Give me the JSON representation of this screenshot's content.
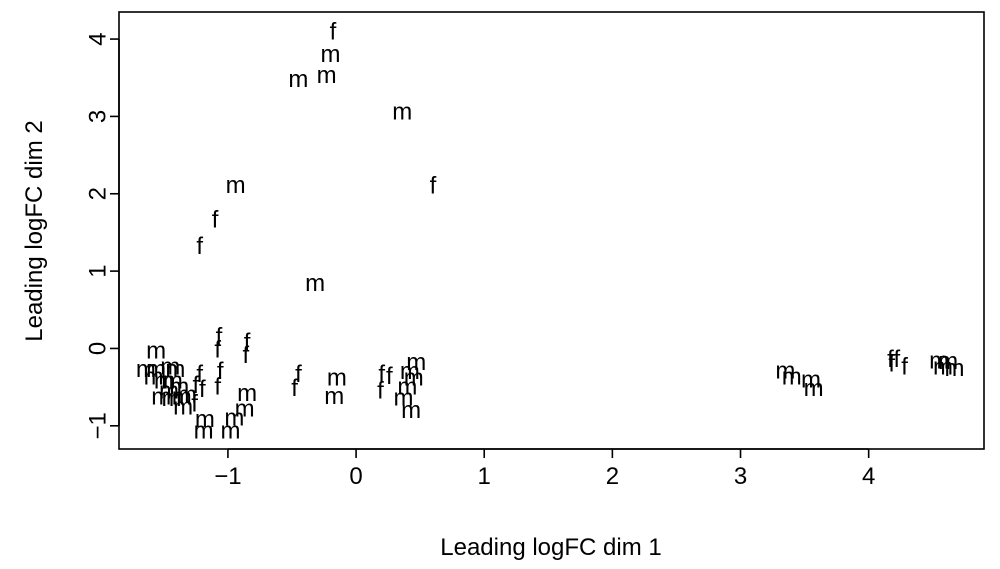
{
  "chart_data": {
    "type": "scatter",
    "title": "",
    "xlabel": "Leading logFC dim 1",
    "ylabel": "Leading logFC dim 2",
    "xlim": [
      -1.85,
      4.9
    ],
    "ylim": [
      -1.3,
      4.35
    ],
    "xticks": [
      -1,
      0,
      1,
      2,
      3,
      4
    ],
    "yticks": [
      -1,
      0,
      1,
      2,
      3,
      4
    ],
    "xtick_labels": [
      "−1",
      "0",
      "1",
      "2",
      "3",
      "4"
    ],
    "ytick_labels": [
      "−1",
      "0",
      "1",
      "2",
      "3",
      "4"
    ],
    "grid": false,
    "legend": false,
    "points": [
      {
        "x": -0.18,
        "y": 4.09,
        "label": "f"
      },
      {
        "x": -0.2,
        "y": 3.8,
        "label": "m"
      },
      {
        "x": -0.45,
        "y": 3.48,
        "label": "m"
      },
      {
        "x": -0.23,
        "y": 3.53,
        "label": "m"
      },
      {
        "x": 0.36,
        "y": 3.06,
        "label": "m"
      },
      {
        "x": 0.6,
        "y": 2.1,
        "label": "f"
      },
      {
        "x": -0.94,
        "y": 2.11,
        "label": "m"
      },
      {
        "x": -1.1,
        "y": 1.66,
        "label": "f"
      },
      {
        "x": -1.22,
        "y": 1.32,
        "label": "f"
      },
      {
        "x": -0.32,
        "y": 0.84,
        "label": "m"
      },
      {
        "x": -1.56,
        "y": -0.03,
        "label": "m"
      },
      {
        "x": -1.64,
        "y": -0.27,
        "label": "m"
      },
      {
        "x": -1.56,
        "y": -0.27,
        "label": "m"
      },
      {
        "x": -1.45,
        "y": -0.24,
        "label": "m"
      },
      {
        "x": -1.41,
        "y": -0.27,
        "label": "m"
      },
      {
        "x": -1.58,
        "y": -0.37,
        "label": "m"
      },
      {
        "x": -1.5,
        "y": -0.42,
        "label": "m"
      },
      {
        "x": -1.43,
        "y": -0.42,
        "label": "m"
      },
      {
        "x": -1.46,
        "y": -0.55,
        "label": "m"
      },
      {
        "x": -1.38,
        "y": -0.5,
        "label": "m"
      },
      {
        "x": -1.52,
        "y": -0.63,
        "label": "m"
      },
      {
        "x": -1.44,
        "y": -0.65,
        "label": "m"
      },
      {
        "x": -1.36,
        "y": -0.63,
        "label": "m"
      },
      {
        "x": -1.32,
        "y": -0.6,
        "label": "m"
      },
      {
        "x": -1.35,
        "y": -0.76,
        "label": "m"
      },
      {
        "x": -1.22,
        "y": -0.34,
        "label": "f"
      },
      {
        "x": -1.25,
        "y": -0.48,
        "label": "f"
      },
      {
        "x": -1.2,
        "y": -0.53,
        "label": "f"
      },
      {
        "x": -1.26,
        "y": -0.72,
        "label": "f"
      },
      {
        "x": -1.18,
        "y": -0.92,
        "label": "m"
      },
      {
        "x": -1.19,
        "y": -1.07,
        "label": "m"
      },
      {
        "x": -1.07,
        "y": 0.15,
        "label": "f"
      },
      {
        "x": -1.08,
        "y": -0.02,
        "label": "f"
      },
      {
        "x": -1.06,
        "y": -0.3,
        "label": "f"
      },
      {
        "x": -1.08,
        "y": -0.5,
        "label": "f"
      },
      {
        "x": -0.85,
        "y": 0.08,
        "label": "f"
      },
      {
        "x": -0.86,
        "y": -0.09,
        "label": "f"
      },
      {
        "x": -0.85,
        "y": -0.58,
        "label": "m"
      },
      {
        "x": -0.87,
        "y": -0.78,
        "label": "m"
      },
      {
        "x": -0.95,
        "y": -0.9,
        "label": "m"
      },
      {
        "x": -0.98,
        "y": -1.07,
        "label": "m"
      },
      {
        "x": -0.45,
        "y": -0.34,
        "label": "f"
      },
      {
        "x": -0.48,
        "y": -0.52,
        "label": "f"
      },
      {
        "x": -0.15,
        "y": -0.38,
        "label": "m"
      },
      {
        "x": -0.17,
        "y": -0.62,
        "label": "m"
      },
      {
        "x": 0.2,
        "y": -0.34,
        "label": "f"
      },
      {
        "x": 0.26,
        "y": -0.36,
        "label": "f"
      },
      {
        "x": 0.19,
        "y": -0.55,
        "label": "f"
      },
      {
        "x": 0.47,
        "y": -0.18,
        "label": "m"
      },
      {
        "x": 0.42,
        "y": -0.3,
        "label": "m"
      },
      {
        "x": 0.45,
        "y": -0.38,
        "label": "m"
      },
      {
        "x": 0.4,
        "y": -0.5,
        "label": "m"
      },
      {
        "x": 0.37,
        "y": -0.64,
        "label": "m"
      },
      {
        "x": 0.43,
        "y": -0.8,
        "label": "m"
      },
      {
        "x": 3.35,
        "y": -0.29,
        "label": "m"
      },
      {
        "x": 3.4,
        "y": -0.37,
        "label": "m"
      },
      {
        "x": 3.55,
        "y": -0.41,
        "label": "m"
      },
      {
        "x": 3.57,
        "y": -0.52,
        "label": "m"
      },
      {
        "x": 4.17,
        "y": -0.14,
        "label": "f"
      },
      {
        "x": 4.22,
        "y": -0.14,
        "label": "f"
      },
      {
        "x": 4.18,
        "y": -0.2,
        "label": "f"
      },
      {
        "x": 4.28,
        "y": -0.24,
        "label": "f"
      },
      {
        "x": 4.55,
        "y": -0.16,
        "label": "m"
      },
      {
        "x": 4.62,
        "y": -0.17,
        "label": "m"
      },
      {
        "x": 4.58,
        "y": -0.24,
        "label": "m"
      },
      {
        "x": 4.67,
        "y": -0.26,
        "label": "m"
      }
    ]
  }
}
